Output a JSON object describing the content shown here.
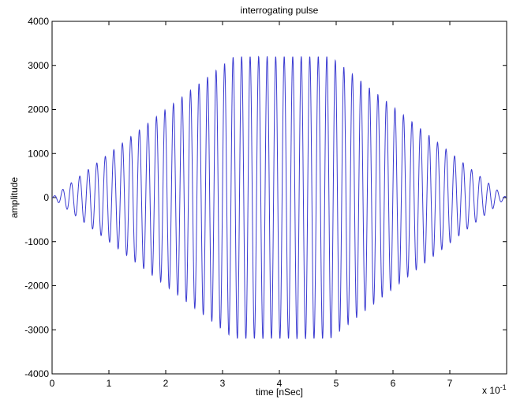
{
  "chart_data": {
    "type": "line",
    "title": "interrogating pulse",
    "xlabel": "time [nSec]",
    "ylabel": "amplitude",
    "x_multiplier_label": "x 10",
    "x_multiplier_exponent": "-1",
    "xlim": [
      0,
      8
    ],
    "ylim": [
      -4000,
      4000
    ],
    "xticks": [
      0,
      1,
      2,
      3,
      4,
      5,
      6,
      7
    ],
    "yticks": [
      -4000,
      -3000,
      -2000,
      -1000,
      0,
      1000,
      2000,
      3000,
      4000
    ],
    "grid": false,
    "line_color": "#3b3bd1",
    "series": [
      {
        "waveform": "amplitude-modulated sinusoid",
        "carrier_cycles_per_unit": 6.67,
        "envelope_points": [
          [
            0,
            0
          ],
          [
            3.2,
            3200
          ],
          [
            4.9,
            3200
          ],
          [
            8,
            0
          ]
        ]
      }
    ]
  }
}
